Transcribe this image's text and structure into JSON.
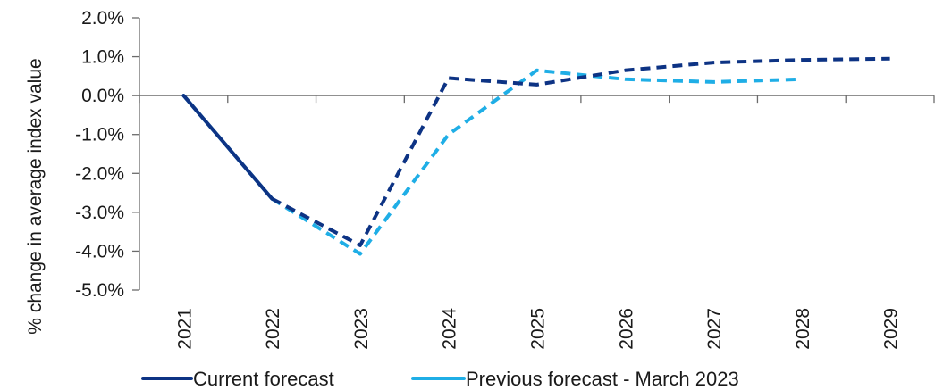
{
  "chart_data": {
    "type": "line",
    "title": "",
    "ylabel": "% change in average index value",
    "xlabel": "",
    "ylim": [
      -5.0,
      2.0
    ],
    "yticks": [
      2.0,
      1.0,
      0.0,
      -1.0,
      -2.0,
      -3.0,
      -4.0,
      -5.0
    ],
    "ytick_labels": [
      "2.0%",
      "1.0%",
      "0.0%",
      "-1.0%",
      "-2.0%",
      "-3.0%",
      "-4.0%",
      "-5.0%"
    ],
    "categories": [
      "2021",
      "2022",
      "2023",
      "2024",
      "2025",
      "2026",
      "2027",
      "2028",
      "2029"
    ],
    "grid": false,
    "legend_position": "bottom",
    "series": [
      {
        "name": "Current forecast",
        "color": "#0d3384",
        "solid_until_index": 1,
        "values": [
          0.0,
          -2.65,
          -3.85,
          0.45,
          0.28,
          0.65,
          0.85,
          0.92,
          0.95
        ]
      },
      {
        "name": "Previous forecast - March 2023",
        "color": "#1faee6",
        "solid_until_index": 1,
        "values": [
          0.0,
          -2.65,
          -4.07,
          -1.0,
          0.65,
          0.42,
          0.35,
          0.42,
          null
        ]
      }
    ]
  }
}
